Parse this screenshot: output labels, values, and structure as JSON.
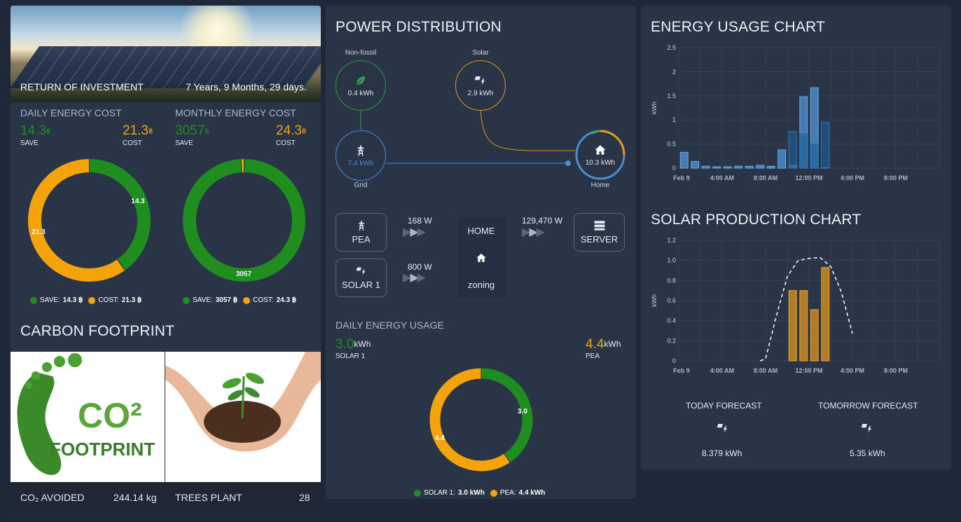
{
  "roi": {
    "label": "RETURN OF INVESTMENT",
    "value": "7 Years, 9 Months, 29 days."
  },
  "daily_cost": {
    "title": "DAILY ENERGY COST",
    "save_value": "14.3",
    "save_label": "SAVE",
    "cost_value": "21.3",
    "cost_label": "COST",
    "currency": "฿",
    "donut_save": "14.3",
    "donut_cost": "21.3",
    "legend_save": "SAVE:",
    "legend_save_val": "14.3 ฿",
    "legend_cost": "COST:",
    "legend_cost_val": "21.3 ฿"
  },
  "monthly_cost": {
    "title": "MONTHLY ENERGY COST",
    "save_value": "3057",
    "save_label": "SAVE",
    "cost_value": "24.3",
    "cost_label": "COST",
    "currency": "฿",
    "donut_save": "3057",
    "legend_save": "SAVE:",
    "legend_save_val": "3057 ฿",
    "legend_cost": "COST:",
    "legend_cost_val": "24.3 ฿"
  },
  "carbon": {
    "title": "CARBON FOOTPRINT",
    "logo_co2": "CO²",
    "logo_text": "FOOTPRINT",
    "co2_label": "CO₂ AVOIDED",
    "co2_value": "244.14 kg",
    "trees_label": "TREES PLANT",
    "trees_value": "28"
  },
  "power": {
    "title": "POWER DISTRIBUTION",
    "nonfossil": {
      "label": "Non-fossil",
      "value": "0.4 kWh"
    },
    "solar": {
      "label": "Solar",
      "value": "2.9 kWh"
    },
    "grid": {
      "label": "Grid",
      "value": "7.4 kWh"
    },
    "home": {
      "label": "Home",
      "value": "10.3 kWh"
    },
    "pea_label": "PEA",
    "pea_watts": "168 W",
    "solar1_label": "SOLAR 1",
    "solar1_watts": "800 W",
    "home_label": "HOME",
    "zoning_label": "zoning",
    "server_label": "SERVER",
    "server_watts": "129,470 W"
  },
  "daily_usage": {
    "title": "DAILY ENERGY USAGE",
    "solar_value": "3.0",
    "solar_unit": "kWh",
    "solar_label": "SOLAR 1",
    "pea_value": "4.4",
    "pea_unit": "kWh",
    "pea_label": "PEA",
    "donut_solar": "3.0",
    "donut_pea": "4.4",
    "legend_solar": "SOLAR 1:",
    "legend_solar_val": "3.0 kWh",
    "legend_pea": "PEA:",
    "legend_pea_val": "4.4 kWh"
  },
  "energy_chart": {
    "title": "ENERGY USAGE CHART"
  },
  "solar_chart": {
    "title": "SOLAR PRODUCTION CHART"
  },
  "forecast": {
    "today_label": "TODAY FORECAST",
    "today_value": "8.379 kWh",
    "tomorrow_label": "TOMORROW FORECAST",
    "tomorrow_value": "5.35 kWh"
  },
  "colors": {
    "green": "#1f8e1f",
    "orange": "#f5a30a",
    "blue": "#4c8fd0",
    "bg": "#1f2838",
    "card": "#2a3447"
  },
  "chart_data": [
    {
      "type": "bar",
      "ylabel": "kWh",
      "ylim": [
        0,
        2.5
      ],
      "yticks": [
        "0",
        "0.5",
        "1",
        "1.5",
        "2",
        "2.5"
      ],
      "xticks": [
        "Feb 9",
        "4:00 AM",
        "8:00 AM",
        "12:00 PM",
        "4:00 PM",
        "8:00 PM"
      ],
      "grid": true,
      "series": [
        {
          "values": [
            0.33,
            0.14,
            0.04,
            0.03,
            0.03,
            0.04,
            0.04,
            0.06,
            0.04,
            0.38,
            0.06,
            1.48,
            1.67,
            0.01,
            0,
            0,
            0,
            0,
            0,
            0,
            0,
            0,
            0,
            0
          ]
        },
        {
          "values": [
            0,
            0,
            0,
            0,
            0,
            0,
            0,
            0,
            0,
            0,
            0.76,
            0.72,
            0.51,
            0.95,
            0,
            0,
            0,
            0,
            0,
            0,
            0,
            0,
            0,
            0
          ]
        }
      ]
    },
    {
      "type": "bar",
      "ylabel": "kWh",
      "ylim": [
        0,
        1.2
      ],
      "yticks": [
        "0",
        "0.2",
        "0.4",
        "0.6",
        "0.8",
        "1.0",
        "1.2"
      ],
      "xticks": [
        "Feb 9",
        "4:00 AM",
        "8:00 AM",
        "12:00 PM",
        "4:00 PM",
        "8:00 PM"
      ],
      "grid": true,
      "series": [
        {
          "values": [
            0,
            0,
            0,
            0,
            0,
            0,
            0,
            0,
            0,
            0,
            0.7,
            0.7,
            0.51,
            0.93,
            0,
            0,
            0,
            0,
            0,
            0,
            0,
            0,
            0,
            0
          ]
        },
        {
          "type": "line",
          "style": "dashed",
          "x": [
            7.5,
            8,
            9,
            10,
            11,
            12,
            13,
            14,
            15,
            16
          ],
          "values": [
            0,
            0.02,
            0.45,
            0.84,
            1.0,
            1.02,
            1.03,
            0.94,
            0.68,
            0.27
          ]
        }
      ]
    },
    {
      "type": "pie",
      "categories": [
        "SAVE",
        "COST"
      ],
      "values": [
        14.3,
        21.3
      ]
    },
    {
      "type": "pie",
      "categories": [
        "SAVE",
        "COST"
      ],
      "values": [
        3057,
        24.3
      ]
    },
    {
      "type": "pie",
      "categories": [
        "SOLAR 1",
        "PEA"
      ],
      "values": [
        3.0,
        4.4
      ]
    }
  ]
}
